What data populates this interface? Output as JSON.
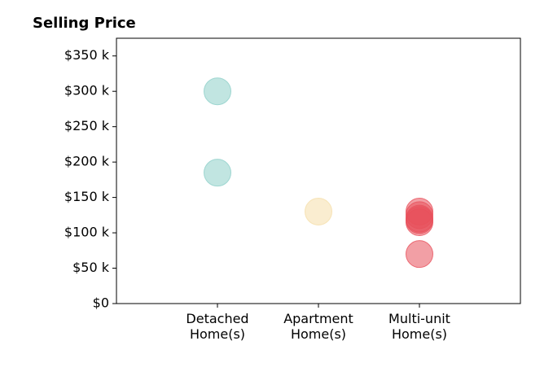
{
  "chart_data": {
    "type": "scatter",
    "title": "Selling Price",
    "categories": [
      "Detached\nHome(s)",
      "Apartment\nHome(s)",
      "Multi-unit\nHome(s)"
    ],
    "series": [
      {
        "color": "#8ecfc9",
        "values": [
          300,
          185
        ]
      },
      {
        "color": "#f5dfaa",
        "values": [
          130
        ]
      },
      {
        "color": "#e8505b",
        "values": [
          130,
          125,
          120,
          118,
          115,
          70
        ]
      }
    ],
    "xlim": [
      0,
      4
    ],
    "ylim": [
      0,
      375
    ],
    "yticks": [
      {
        "value": 0,
        "label": "$0"
      },
      {
        "value": 50,
        "label": "$50 k"
      },
      {
        "value": 100,
        "label": "$100 k"
      },
      {
        "value": 150,
        "label": "$150 k"
      },
      {
        "value": 200,
        "label": "$200 k"
      },
      {
        "value": 250,
        "label": "$250 k"
      },
      {
        "value": 300,
        "label": "$300 k"
      },
      {
        "value": 350,
        "label": "$350 k"
      }
    ]
  }
}
